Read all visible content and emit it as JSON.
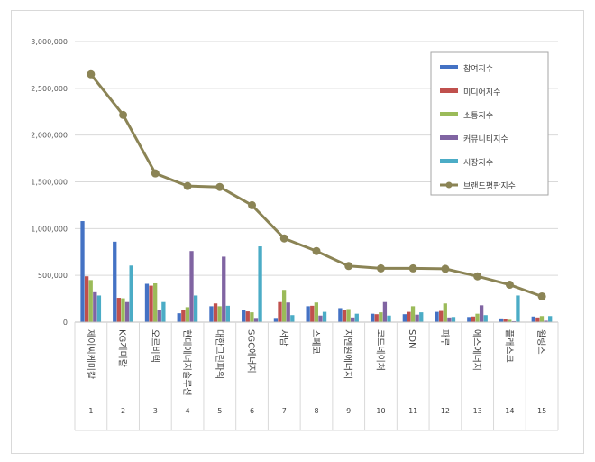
{
  "chart_data": {
    "type": "bar",
    "title": "",
    "xlabel": "",
    "ylabel": "",
    "ylim": [
      0,
      3000000
    ],
    "yticks": [
      0,
      500000,
      1000000,
      1500000,
      2000000,
      2500000,
      3000000
    ],
    "ytick_labels": [
      "0",
      "500,000",
      "1,000,000",
      "1,500,000",
      "2,000,000",
      "2,500,000",
      "3,000,000"
    ],
    "grid": true,
    "legend_position": "top-right",
    "categories": [
      "제이씨케미칼",
      "KG케미칼",
      "오르비텍",
      "현대에너지솔루션",
      "대한그린파워",
      "SGC에너지",
      "서남",
      "스페코",
      "지엔원에너지",
      "코드네이처",
      "SDN",
      "파루",
      "에스에너지",
      "플래스크",
      "윌링스"
    ],
    "ranks": [
      "1",
      "2",
      "3",
      "4",
      "5",
      "6",
      "7",
      "8",
      "9",
      "10",
      "11",
      "12",
      "13",
      "14",
      "15"
    ],
    "series": [
      {
        "name": "참여지수",
        "color": "#4472c4",
        "values": [
          1080000,
          860000,
          410000,
          95000,
          170000,
          130000,
          45000,
          170000,
          150000,
          90000,
          85000,
          110000,
          55000,
          40000,
          60000
        ]
      },
      {
        "name": "미디어지수",
        "color": "#c0504d",
        "values": [
          490000,
          260000,
          390000,
          130000,
          200000,
          115000,
          215000,
          175000,
          130000,
          85000,
          110000,
          120000,
          60000,
          30000,
          50000
        ]
      },
      {
        "name": "소통지수",
        "color": "#9bbb59",
        "values": [
          450000,
          255000,
          415000,
          160000,
          170000,
          105000,
          345000,
          210000,
          140000,
          105000,
          170000,
          200000,
          90000,
          25000,
          65000
        ]
      },
      {
        "name": "커뮤니티지수",
        "color": "#8064a2",
        "values": [
          320000,
          215000,
          130000,
          760000,
          700000,
          45000,
          210000,
          70000,
          50000,
          215000,
          80000,
          50000,
          180000,
          10000,
          15000
        ]
      },
      {
        "name": "시장지수",
        "color": "#4bacc6",
        "values": [
          285000,
          605000,
          215000,
          285000,
          175000,
          810000,
          75000,
          110000,
          90000,
          70000,
          105000,
          55000,
          75000,
          285000,
          65000
        ]
      }
    ],
    "line_series": {
      "name": "브랜드평판지수",
      "color": "#8b8455",
      "values": [
        2650000,
        2215000,
        1590000,
        1455000,
        1445000,
        1250000,
        895000,
        760000,
        600000,
        575000,
        575000,
        570000,
        490000,
        400000,
        275000
      ]
    }
  }
}
